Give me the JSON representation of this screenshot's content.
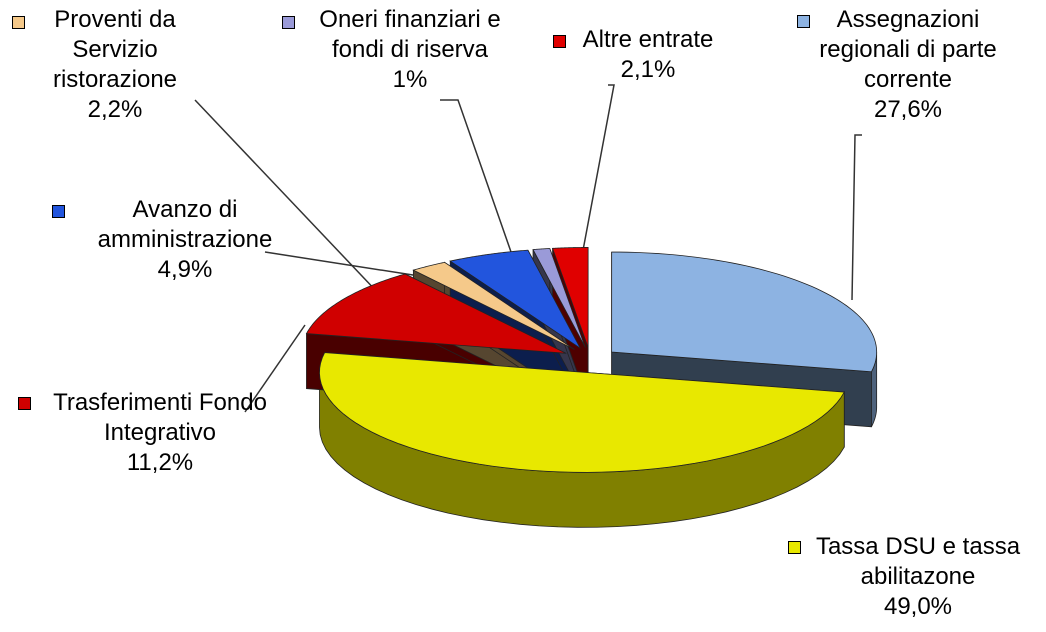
{
  "chart_data": {
    "type": "pie3d",
    "categories": [
      "Assegnazioni regionali di parte corrente",
      "Tassa DSU e tassa abilitazone",
      "Trasferimenti Fondo Integrativo",
      "Proventi da Servizio ristorazione",
      "Avanzo di amministrazione",
      "Oneri finanziari e fondi di riserva",
      "Altre entrate"
    ],
    "values": [
      27.6,
      49.0,
      11.2,
      2.2,
      4.9,
      1,
      2.1
    ],
    "value_labels": [
      "27,6%",
      "49,0%",
      "11,2%",
      "2,2%",
      "4,9%",
      "1%",
      "2,1%"
    ],
    "colors": [
      "#8db3e2",
      "#e8e800",
      "#d00000",
      "#f5c98a",
      "#2255dd",
      "#9a9ad8",
      "#e00000"
    ]
  }
}
